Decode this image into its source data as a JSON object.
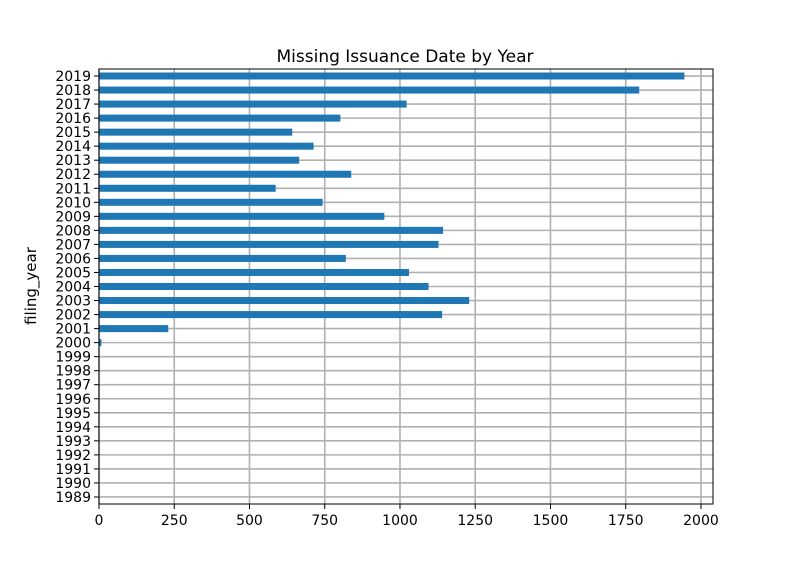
{
  "chart_data": {
    "type": "bar",
    "orientation": "horizontal",
    "title": "Missing Issuance Date by Year",
    "xlabel": "",
    "ylabel": "filing_year",
    "xlim": [
      0,
      2040
    ],
    "xticks": [
      0,
      250,
      500,
      750,
      1000,
      1250,
      1500,
      1750,
      2000
    ],
    "grid": true,
    "bar_color": "#1f77b4",
    "categories": [
      "1989",
      "1990",
      "1991",
      "1992",
      "1993",
      "1994",
      "1995",
      "1996",
      "1997",
      "1998",
      "1999",
      "2000",
      "2001",
      "2002",
      "2003",
      "2004",
      "2005",
      "2006",
      "2007",
      "2008",
      "2009",
      "2010",
      "2011",
      "2012",
      "2013",
      "2014",
      "2015",
      "2016",
      "2017",
      "2018",
      "2019"
    ],
    "values": [
      0,
      0,
      0,
      0,
      0,
      0,
      0,
      0,
      0,
      0,
      0,
      8,
      230,
      1140,
      1230,
      1095,
      1030,
      820,
      1128,
      1143,
      948,
      743,
      587,
      838,
      665,
      713,
      642,
      802,
      1022,
      1795,
      1945
    ]
  }
}
